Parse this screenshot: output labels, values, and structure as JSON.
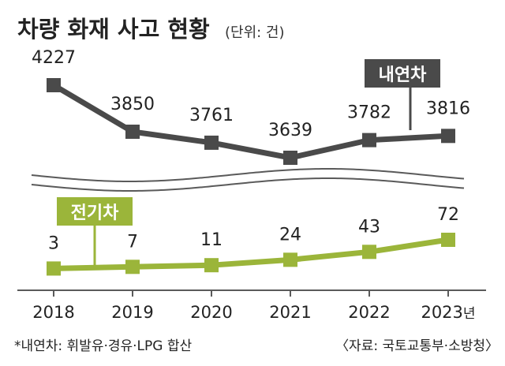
{
  "title": "차량 화재 사고 현황",
  "unit_note": "(단위: 건)",
  "footnote": "*내연차: 휘발유·경유·LPG 합산",
  "source": "〈자료: 국토교통부·소방청〉",
  "x_unit_suffix": "년",
  "colors": {
    "ice": "#4a4a4a",
    "ev": "#9bb53a",
    "axis": "#5a5a5a",
    "wave": "#5a5a5a"
  },
  "chart_data": {
    "type": "line",
    "categories": [
      "2018",
      "2019",
      "2020",
      "2021",
      "2022",
      "2023"
    ],
    "series": [
      {
        "name": "내연차",
        "values": [
          4227,
          3850,
          3761,
          3639,
          3782,
          3816
        ]
      },
      {
        "name": "전기차",
        "values": [
          3,
          7,
          11,
          24,
          43,
          72
        ]
      }
    ],
    "axis_break": true
  }
}
